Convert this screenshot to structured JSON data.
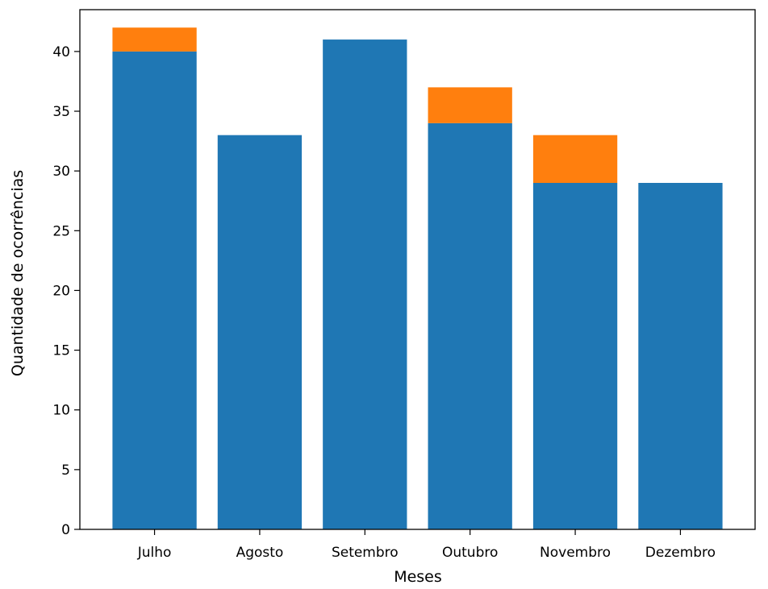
{
  "chart_data": {
    "type": "bar",
    "stacked": true,
    "title": "",
    "xlabel": "Meses",
    "ylabel": "Quantidade de ocorrências",
    "categories": [
      "Julho",
      "Agosto",
      "Setembro",
      "Outubro",
      "Novembro",
      "Dezembro"
    ],
    "series": [
      {
        "color": "#1f77b4",
        "values": [
          40,
          33,
          41,
          34,
          29,
          29
        ]
      },
      {
        "color": "#ff7f0e",
        "values": [
          2,
          0,
          0,
          3,
          4,
          0
        ]
      }
    ],
    "ylim": [
      0,
      43.5
    ],
    "yticks": [
      0,
      5,
      10,
      15,
      20,
      25,
      30,
      35,
      40
    ],
    "grid": false,
    "legend": "none"
  }
}
